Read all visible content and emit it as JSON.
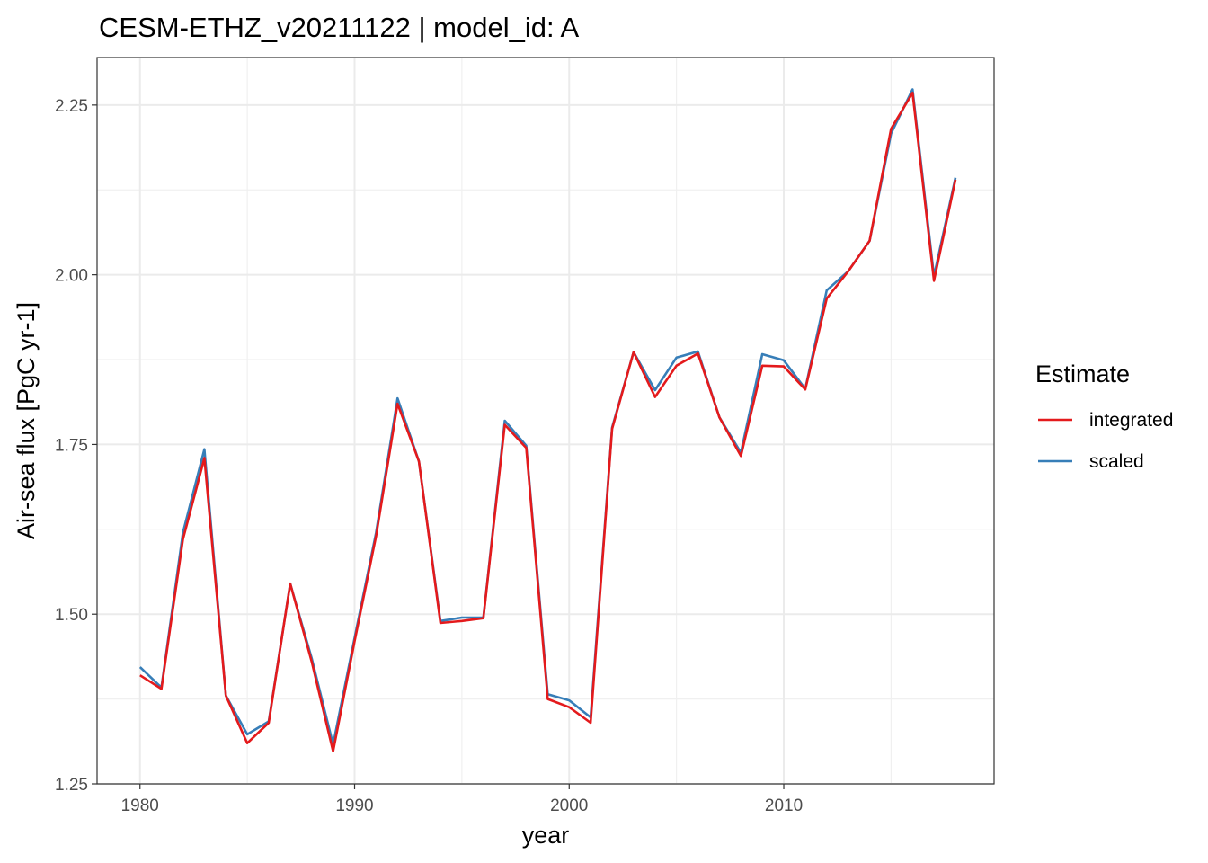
{
  "chart_data": {
    "type": "line",
    "title": "CESM-ETHZ_v20211122 | model_id: A",
    "xlabel": "year",
    "ylabel": "Air-sea flux [PgC yr-1]",
    "xlim": [
      1978.0,
      2019.8
    ],
    "ylim": [
      1.25,
      2.32
    ],
    "xticks": [
      1980,
      1990,
      2000,
      2010
    ],
    "xtick_labels": [
      "1980",
      "1990",
      "2000",
      "2010"
    ],
    "yticks": [
      1.25,
      1.5,
      1.75,
      2.0,
      2.25
    ],
    "ytick_labels": [
      "1.25",
      "1.50",
      "1.75",
      "2.00",
      "2.25"
    ],
    "grid": true,
    "legend": {
      "title": "Estimate",
      "position": "right"
    },
    "x": [
      1980,
      1981,
      1982,
      1983,
      1984,
      1985,
      1986,
      1987,
      1988,
      1989,
      1990,
      1991,
      1992,
      1993,
      1994,
      1995,
      1996,
      1997,
      1998,
      1999,
      2000,
      2001,
      2002,
      2003,
      2004,
      2005,
      2006,
      2007,
      2008,
      2009,
      2010,
      2011,
      2012,
      2013,
      2014,
      2015,
      2016,
      2017,
      2018
    ],
    "series": [
      {
        "name": "integrated",
        "color": "#e41a1c",
        "values": [
          1.41,
          1.39,
          1.61,
          1.73,
          1.38,
          1.31,
          1.34,
          1.545,
          1.43,
          1.298,
          1.46,
          1.615,
          1.81,
          1.725,
          1.487,
          1.49,
          1.494,
          1.779,
          1.745,
          1.375,
          1.363,
          1.34,
          1.773,
          1.886,
          1.82,
          1.866,
          1.884,
          1.79,
          1.733,
          1.866,
          1.865,
          1.831,
          1.965,
          2.005,
          2.05,
          2.215,
          2.268,
          1.991,
          2.14
        ]
      },
      {
        "name": "scaled",
        "color": "#377eb8",
        "values": [
          1.422,
          1.392,
          1.62,
          1.743,
          1.38,
          1.323,
          1.342,
          1.545,
          1.435,
          1.308,
          1.465,
          1.62,
          1.818,
          1.725,
          1.49,
          1.495,
          1.495,
          1.785,
          1.748,
          1.382,
          1.373,
          1.348,
          1.775,
          1.886,
          1.83,
          1.878,
          1.887,
          1.79,
          1.738,
          1.883,
          1.874,
          1.832,
          1.977,
          2.005,
          2.05,
          2.208,
          2.273,
          1.998,
          2.143
        ]
      }
    ]
  }
}
